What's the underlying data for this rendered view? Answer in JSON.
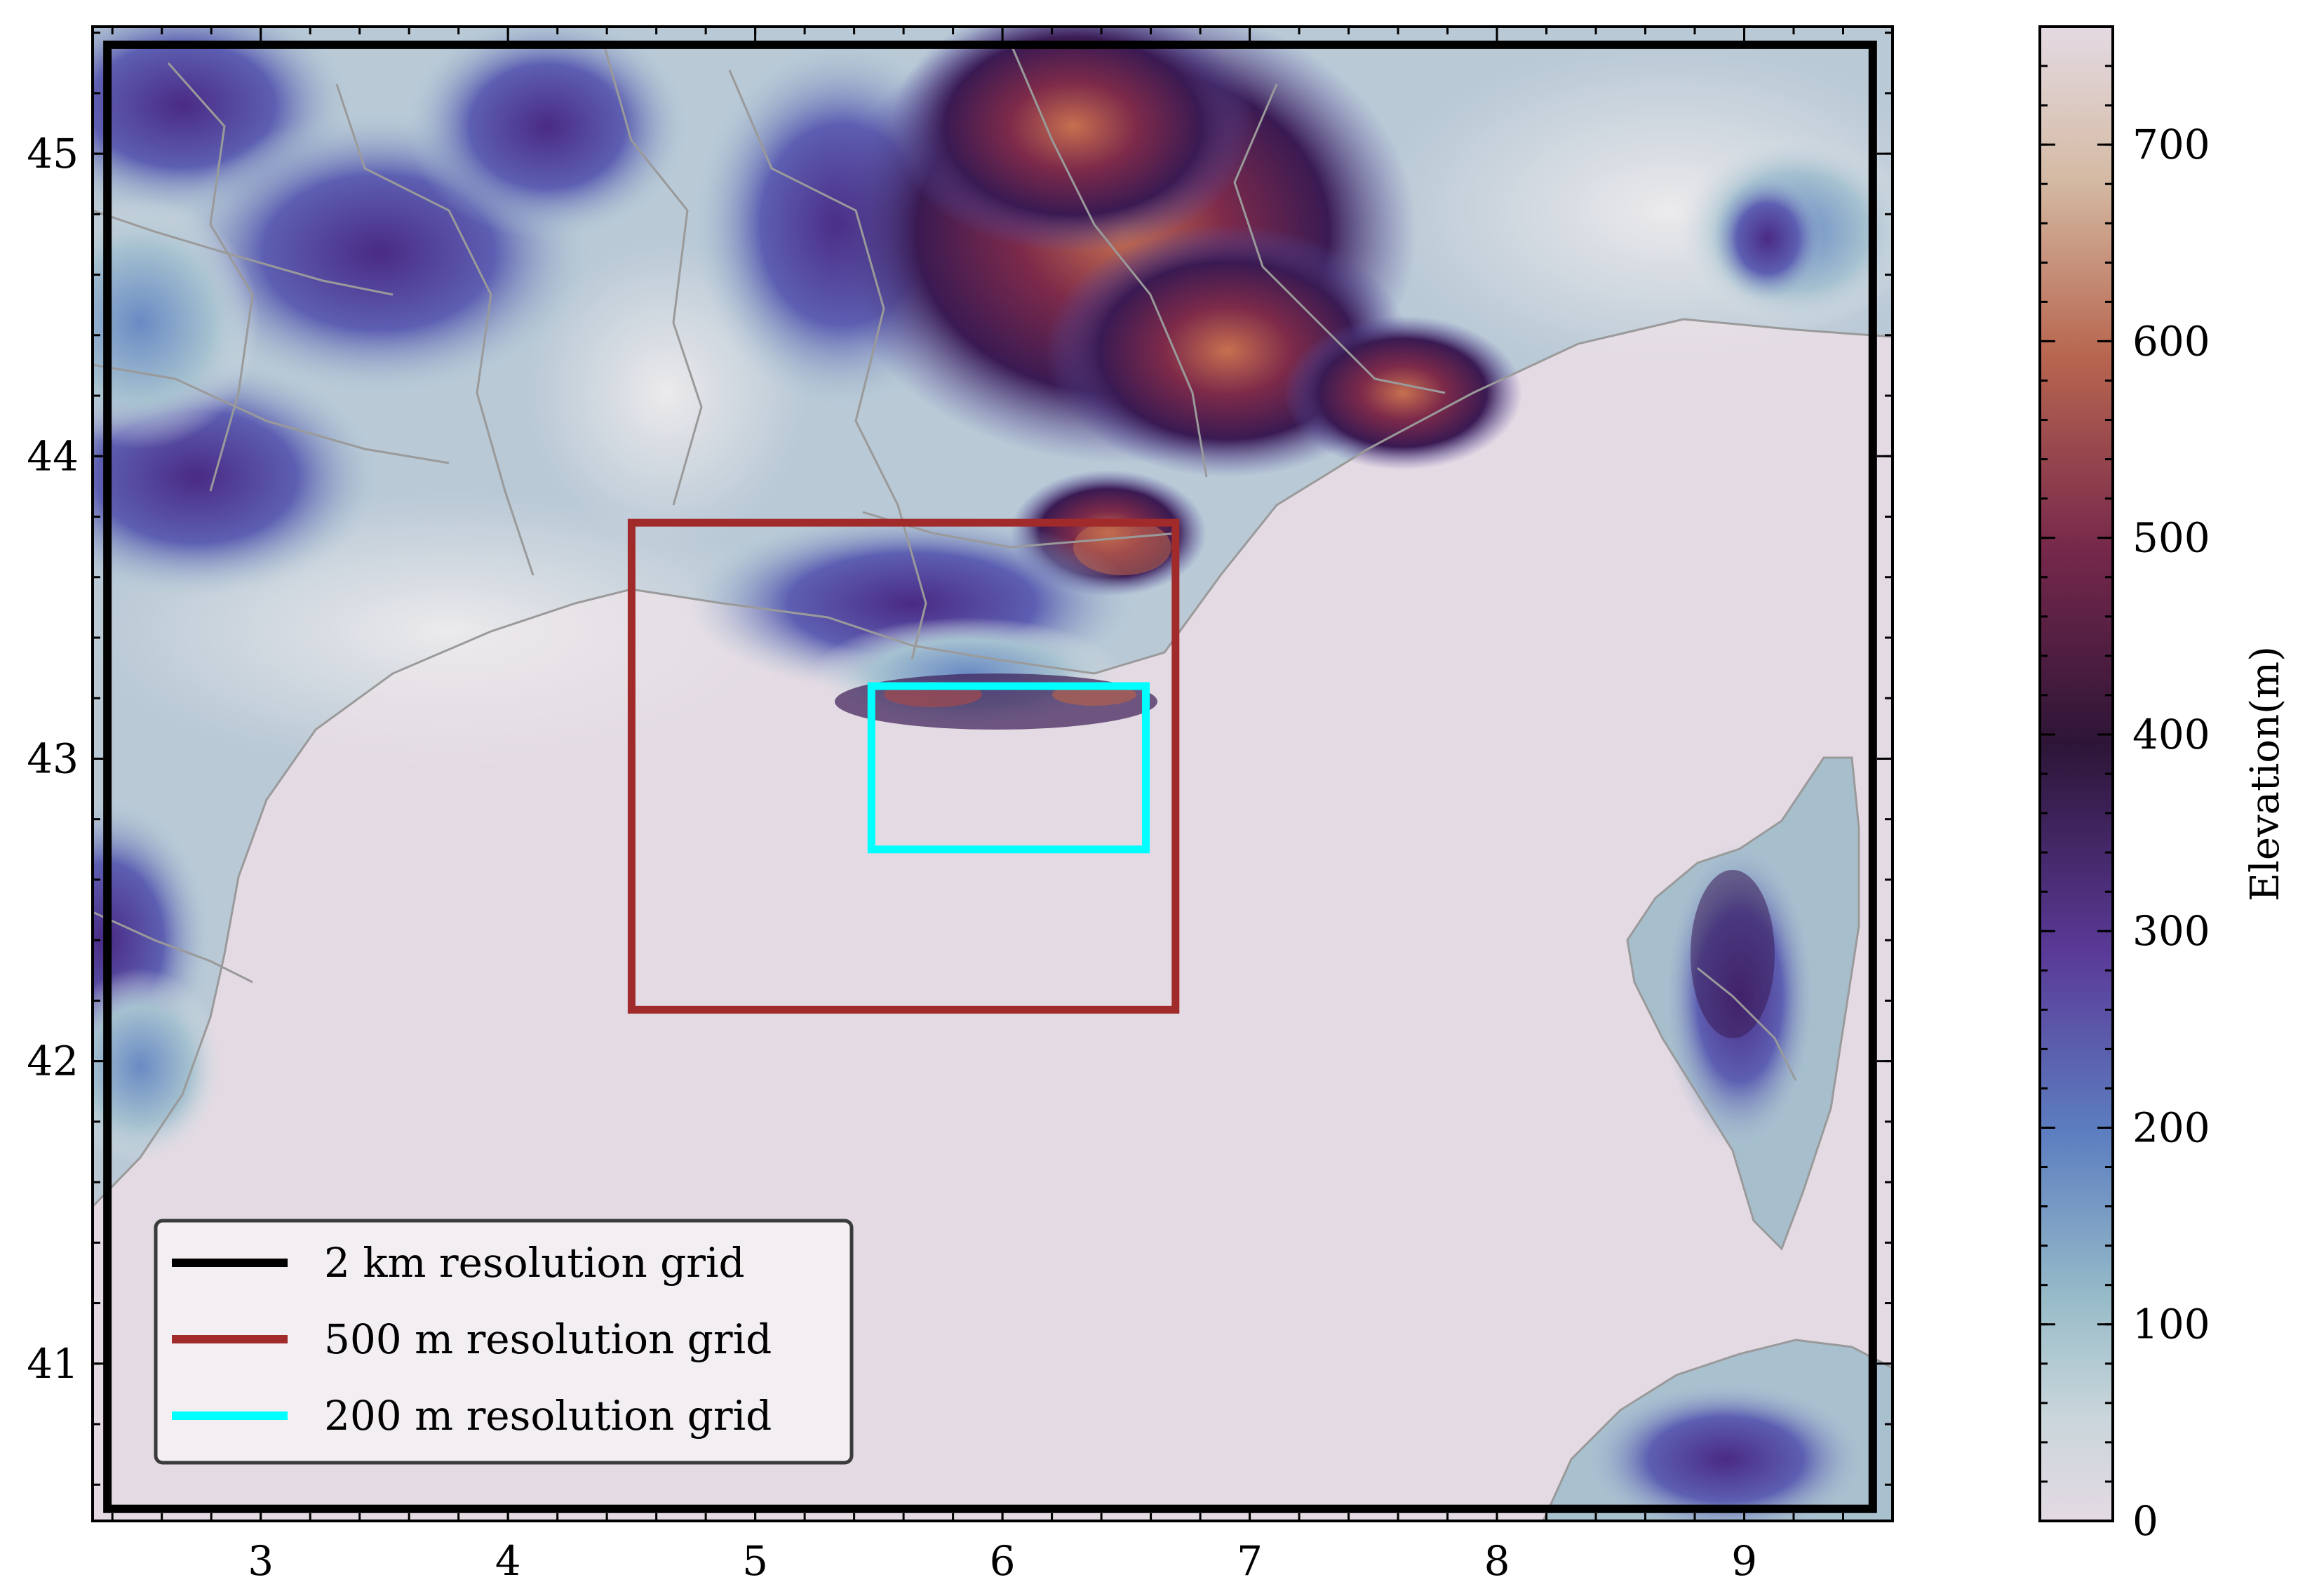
{
  "map": {
    "x_ticks": [
      "3",
      "4",
      "5",
      "6",
      "7",
      "8",
      "9"
    ],
    "y_ticks": [
      "41",
      "42",
      "43",
      "44",
      "45"
    ],
    "x_range_deg": [
      2.32,
      9.6
    ],
    "y_range_deg": [
      40.48,
      45.42
    ],
    "colors": {
      "sea": "#e4dae3",
      "border_lines": "#9a9a9a"
    }
  },
  "grids": [
    {
      "label": "2 km resolution grid",
      "color": "#000000",
      "lon": [
        2.38,
        9.52
      ],
      "lat": [
        40.52,
        45.36
      ]
    },
    {
      "label": "500 m resolution grid",
      "color": "#a12a2a",
      "lon": [
        4.5,
        6.7
      ],
      "lat": [
        42.17,
        43.78
      ]
    },
    {
      "label": "200 m resolution grid",
      "color": "#00ffff",
      "lon": [
        5.47,
        6.58
      ],
      "lat": [
        42.7,
        43.24
      ]
    }
  ],
  "colorbar": {
    "label": "Elevation(m)",
    "ticks": [
      "0",
      "100",
      "200",
      "300",
      "400",
      "500",
      "600",
      "700"
    ],
    "range": [
      0,
      760
    ],
    "colormap": [
      "#e4dae3",
      "#9bbfcb",
      "#5d7cc0",
      "#5b3a98",
      "#2d1537",
      "#7a2a4b",
      "#b8664d",
      "#d8c2ae",
      "#e4dae3"
    ]
  },
  "legend": {
    "items": [
      {
        "label": "2 km resolution grid",
        "color": "#000000"
      },
      {
        "label": "500 m resolution grid",
        "color": "#a12a2a"
      },
      {
        "label": "200 m resolution grid",
        "color": "#00ffff"
      }
    ]
  }
}
